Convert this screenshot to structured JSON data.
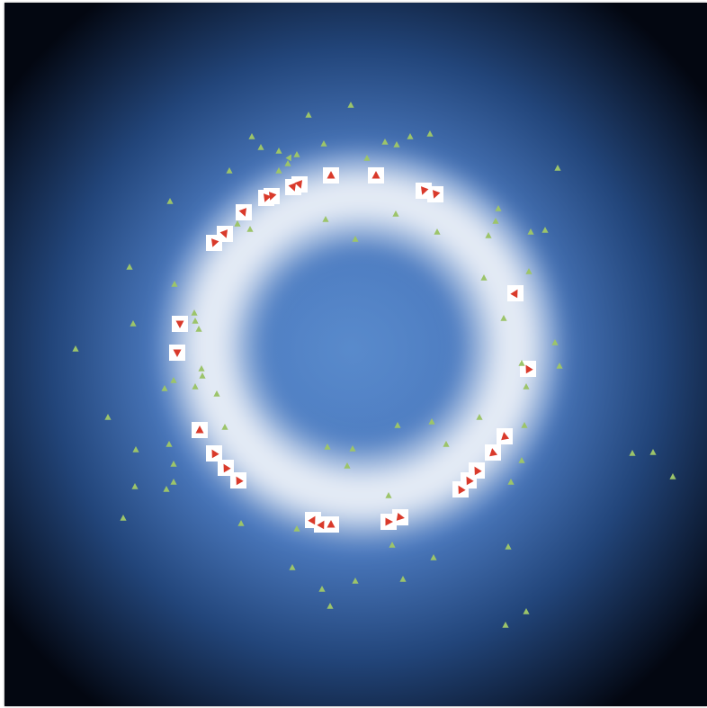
{
  "image": {
    "description_colors": {
      "background_dark": "#04080f",
      "mid_blue": "#3a6fb8",
      "glow_white": "#eef3fb",
      "marker_red": "#d93a2b",
      "marker_green": "#9cc46a"
    },
    "icons": [
      "red-triangle-marker-icon",
      "green-triangle-marker-icon"
    ]
  },
  "markers": {
    "red": [
      [
        368,
        195,
        0
      ],
      [
        418,
        195,
        0
      ],
      [
        471,
        212,
        200
      ],
      [
        484,
        216,
        200
      ],
      [
        333,
        205,
        160
      ],
      [
        326,
        208,
        160
      ],
      [
        302,
        218,
        200
      ],
      [
        296,
        220,
        200
      ],
      [
        271,
        236,
        160
      ],
      [
        250,
        260,
        160
      ],
      [
        238,
        270,
        200
      ],
      [
        200,
        360,
        180
      ],
      [
        197,
        392,
        180
      ],
      [
        573,
        326,
        30
      ],
      [
        587,
        410,
        -30
      ],
      [
        222,
        478,
        0
      ],
      [
        238,
        504,
        -30
      ],
      [
        251,
        520,
        -30
      ],
      [
        265,
        534,
        -30
      ],
      [
        561,
        485,
        -10
      ],
      [
        548,
        503,
        -10
      ],
      [
        530,
        523,
        -30
      ],
      [
        521,
        534,
        -30
      ],
      [
        512,
        544,
        -30
      ],
      [
        348,
        578,
        30
      ],
      [
        358,
        583,
        30
      ],
      [
        368,
        583,
        0
      ],
      [
        432,
        580,
        90
      ],
      [
        445,
        575,
        100
      ]
    ],
    "green": [
      [
        343,
        128,
        0
      ],
      [
        390,
        117,
        0
      ],
      [
        280,
        152,
        0
      ],
      [
        290,
        164,
        0
      ],
      [
        310,
        168,
        0
      ],
      [
        322,
        175,
        30
      ],
      [
        330,
        172,
        0
      ],
      [
        360,
        160,
        0
      ],
      [
        408,
        176,
        0
      ],
      [
        428,
        158,
        0
      ],
      [
        441,
        161,
        0
      ],
      [
        456,
        152,
        0
      ],
      [
        478,
        149,
        0
      ],
      [
        255,
        190,
        0
      ],
      [
        189,
        224,
        0
      ],
      [
        264,
        249,
        0
      ],
      [
        278,
        255,
        0
      ],
      [
        320,
        182,
        0
      ],
      [
        310,
        190,
        0
      ],
      [
        362,
        244,
        0
      ],
      [
        395,
        266,
        0
      ],
      [
        440,
        238,
        0
      ],
      [
        486,
        258,
        0
      ],
      [
        543,
        262,
        0
      ],
      [
        551,
        246,
        0
      ],
      [
        554,
        232,
        0
      ],
      [
        590,
        258,
        0
      ],
      [
        606,
        256,
        0
      ],
      [
        620,
        187,
        0
      ],
      [
        144,
        297,
        0
      ],
      [
        194,
        316,
        0
      ],
      [
        148,
        360,
        0
      ],
      [
        216,
        348,
        0
      ],
      [
        217,
        357,
        0
      ],
      [
        221,
        366,
        0
      ],
      [
        84,
        388,
        0
      ],
      [
        588,
        302,
        0
      ],
      [
        538,
        309,
        0
      ],
      [
        560,
        354,
        0
      ],
      [
        617,
        381,
        0
      ],
      [
        622,
        407,
        0
      ],
      [
        585,
        430,
        0
      ],
      [
        580,
        404,
        0
      ],
      [
        224,
        410,
        0
      ],
      [
        225,
        418,
        0
      ],
      [
        193,
        423,
        0
      ],
      [
        183,
        432,
        0
      ],
      [
        217,
        430,
        0
      ],
      [
        241,
        438,
        0
      ],
      [
        120,
        464,
        0
      ],
      [
        250,
        475,
        0
      ],
      [
        188,
        494,
        0
      ],
      [
        193,
        516,
        0
      ],
      [
        151,
        500,
        0
      ],
      [
        150,
        541,
        0
      ],
      [
        185,
        544,
        0
      ],
      [
        193,
        536,
        0
      ],
      [
        137,
        576,
        0
      ],
      [
        268,
        582,
        0
      ],
      [
        364,
        497,
        0
      ],
      [
        392,
        499,
        0
      ],
      [
        386,
        518,
        0
      ],
      [
        442,
        473,
        0
      ],
      [
        480,
        469,
        0
      ],
      [
        496,
        494,
        0
      ],
      [
        533,
        464,
        0
      ],
      [
        583,
        473,
        0
      ],
      [
        580,
        512,
        0
      ],
      [
        568,
        536,
        0
      ],
      [
        703,
        504,
        0
      ],
      [
        726,
        503,
        0
      ],
      [
        748,
        530,
        0
      ],
      [
        330,
        588,
        0
      ],
      [
        432,
        551,
        0
      ],
      [
        436,
        606,
        0
      ],
      [
        482,
        620,
        0
      ],
      [
        565,
        608,
        0
      ],
      [
        325,
        631,
        0
      ],
      [
        358,
        655,
        0
      ],
      [
        395,
        646,
        0
      ],
      [
        448,
        644,
        0
      ],
      [
        367,
        674,
        0
      ],
      [
        585,
        680,
        0
      ],
      [
        562,
        695,
        0
      ]
    ]
  }
}
